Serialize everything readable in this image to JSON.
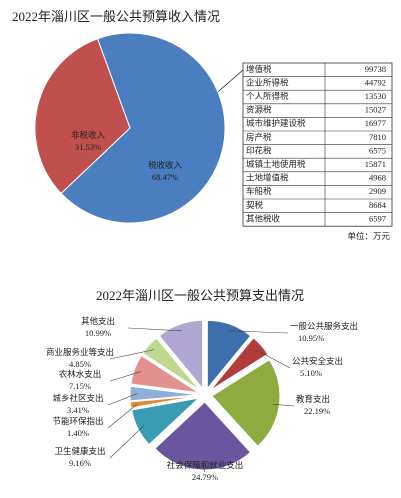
{
  "chart_data": [
    {
      "type": "pie",
      "title": "2022年淄川区一般公共预算收入情况",
      "categories": [
        "税收收入",
        "非税收入"
      ],
      "values": [
        68.47,
        31.53
      ],
      "value_labels": [
        "68.47%",
        "31.53%"
      ],
      "colors": [
        "#4a7ec0",
        "#c0504d"
      ]
    },
    {
      "type": "pie",
      "title": "2022年淄川区一般公共预算支出情况",
      "categories": [
        "一般公共服务支出",
        "公共安全支出",
        "教育支出",
        "社会保障和就业支出",
        "卫生健康支出",
        "节能环保指出",
        "城乡社区支出",
        "农林水支出",
        "商业服务业等支出",
        "其他支出"
      ],
      "values": [
        10.95,
        5.1,
        22.19,
        24.79,
        9.16,
        1.4,
        3.41,
        7.15,
        4.85,
        10.99
      ],
      "value_labels": [
        "10.95%",
        "5.10%",
        "22.19%",
        "24.79%",
        "9.16%",
        "1.40%",
        "3.41%",
        "7.15%",
        "4.85%",
        "10.99%"
      ],
      "colors": [
        "#3d6eae",
        "#b23b3b",
        "#8eab3f",
        "#6a559f",
        "#3a9cb2",
        "#e0892f",
        "#8eb0d8",
        "#e3908f",
        "#bfd891",
        "#b0a6d2"
      ]
    }
  ],
  "table": {
    "rows": [
      [
        "增值税",
        99738
      ],
      [
        "企业所得税",
        44792
      ],
      [
        "个人所得税",
        13530
      ],
      [
        "资源税",
        15027
      ],
      [
        "城市维护建设税",
        16977
      ],
      [
        "房产税",
        7810
      ],
      [
        "印花税",
        6575
      ],
      [
        "城镇土地使用税",
        15871
      ],
      [
        "土地增值税",
        4968
      ],
      [
        "车船税",
        2909
      ],
      [
        "契税",
        8684
      ],
      [
        "其他税收",
        6597
      ]
    ],
    "note": "单位：万元"
  }
}
